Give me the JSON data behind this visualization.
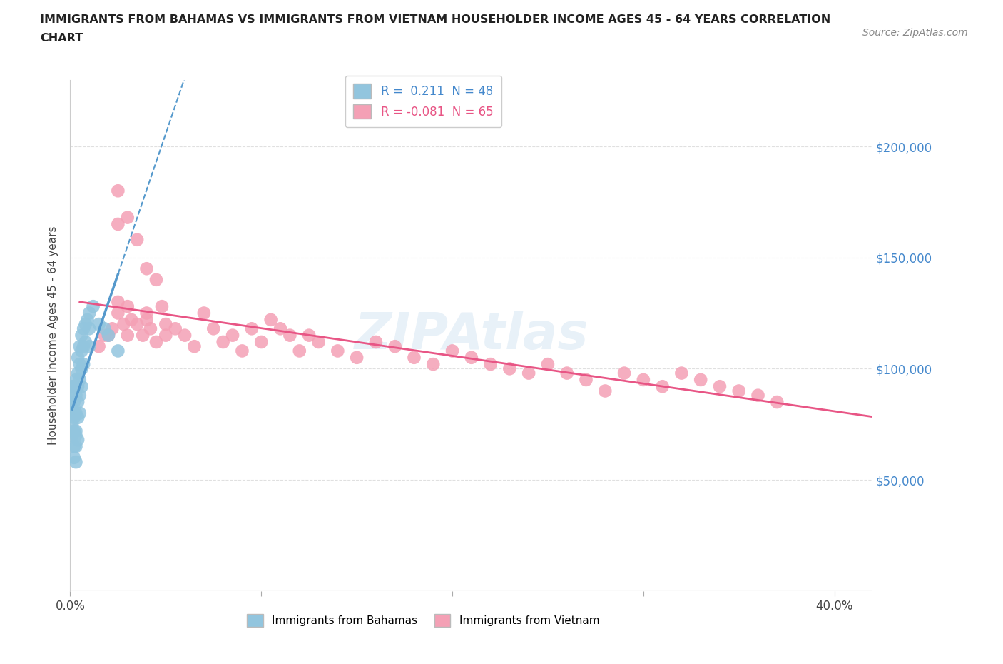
{
  "title_line1": "IMMIGRANTS FROM BAHAMAS VS IMMIGRANTS FROM VIETNAM HOUSEHOLDER INCOME AGES 45 - 64 YEARS CORRELATION",
  "title_line2": "CHART",
  "source": "Source: ZipAtlas.com",
  "ylabel": "Householder Income Ages 45 - 64 years",
  "xlim": [
    0.0,
    0.42
  ],
  "ylim": [
    0,
    230000
  ],
  "ytick_positions": [
    50000,
    100000,
    150000,
    200000
  ],
  "ytick_labels": [
    "$50,000",
    "$100,000",
    "$150,000",
    "$200,000"
  ],
  "grid_color": "#e0e0e0",
  "background_color": "#ffffff",
  "bahamas_color": "#92c5de",
  "vietnam_color": "#f4a0b5",
  "bahamas_line_color": "#5599cc",
  "vietnam_line_color": "#e85585",
  "r_bahamas": 0.211,
  "n_bahamas": 48,
  "r_vietnam": -0.081,
  "n_vietnam": 65,
  "bahamas_x": [
    0.001,
    0.001,
    0.001,
    0.001,
    0.001,
    0.002,
    0.002,
    0.002,
    0.002,
    0.002,
    0.002,
    0.002,
    0.003,
    0.003,
    0.003,
    0.003,
    0.003,
    0.003,
    0.003,
    0.004,
    0.004,
    0.004,
    0.004,
    0.004,
    0.004,
    0.005,
    0.005,
    0.005,
    0.005,
    0.005,
    0.006,
    0.006,
    0.006,
    0.006,
    0.007,
    0.007,
    0.007,
    0.008,
    0.008,
    0.009,
    0.01,
    0.01,
    0.01,
    0.012,
    0.015,
    0.018,
    0.02,
    0.025
  ],
  "bahamas_y": [
    75000,
    82000,
    88000,
    92000,
    70000,
    85000,
    92000,
    80000,
    72000,
    65000,
    78000,
    60000,
    95000,
    88000,
    80000,
    72000,
    65000,
    58000,
    70000,
    105000,
    98000,
    92000,
    85000,
    78000,
    68000,
    110000,
    102000,
    95000,
    88000,
    80000,
    115000,
    108000,
    100000,
    92000,
    118000,
    110000,
    102000,
    120000,
    112000,
    122000,
    125000,
    118000,
    110000,
    128000,
    120000,
    118000,
    115000,
    108000
  ],
  "vietnam_x": [
    0.02,
    0.022,
    0.025,
    0.025,
    0.028,
    0.03,
    0.032,
    0.035,
    0.038,
    0.04,
    0.042,
    0.045,
    0.048,
    0.05,
    0.055,
    0.06,
    0.065,
    0.07,
    0.075,
    0.08,
    0.085,
    0.09,
    0.095,
    0.1,
    0.105,
    0.11,
    0.115,
    0.12,
    0.125,
    0.13,
    0.14,
    0.15,
    0.16,
    0.17,
    0.18,
    0.19,
    0.2,
    0.21,
    0.22,
    0.23,
    0.24,
    0.25,
    0.26,
    0.27,
    0.28,
    0.29,
    0.3,
    0.31,
    0.32,
    0.33,
    0.34,
    0.35,
    0.36,
    0.37,
    0.015,
    0.018,
    0.025,
    0.03,
    0.04,
    0.05,
    0.025,
    0.03,
    0.035,
    0.04,
    0.045
  ],
  "vietnam_y": [
    115000,
    118000,
    165000,
    125000,
    120000,
    115000,
    122000,
    120000,
    115000,
    125000,
    118000,
    112000,
    128000,
    120000,
    118000,
    115000,
    110000,
    125000,
    118000,
    112000,
    115000,
    108000,
    118000,
    112000,
    122000,
    118000,
    115000,
    108000,
    115000,
    112000,
    108000,
    105000,
    112000,
    110000,
    105000,
    102000,
    108000,
    105000,
    102000,
    100000,
    98000,
    102000,
    98000,
    95000,
    90000,
    98000,
    95000,
    92000,
    98000,
    95000,
    92000,
    90000,
    88000,
    85000,
    110000,
    115000,
    130000,
    128000,
    122000,
    115000,
    180000,
    168000,
    158000,
    145000,
    140000
  ]
}
